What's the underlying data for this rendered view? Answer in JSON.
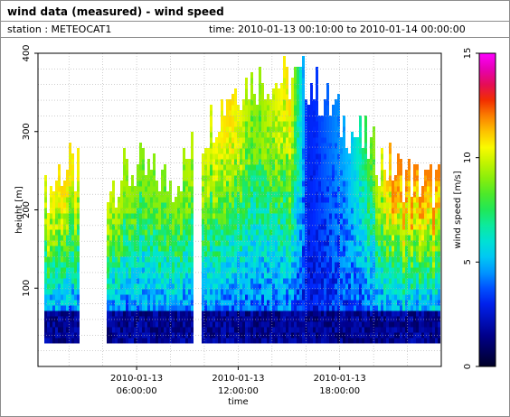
{
  "header": {
    "title": "wind data (measured) - wind speed",
    "station": "station : METEOCAT1",
    "timerange": "time: 2010-01-13 00:10:00 to 2010-01-14 00:00:00"
  },
  "chart_data": {
    "type": "heatmap",
    "xlabel": "time",
    "ylabel": "height [m]",
    "colorbar_label": "wind speed [m/s]",
    "colorscale": "jet-like (dark blue to magenta)",
    "xlim_hours": [
      0.17,
      24
    ],
    "ylim": [
      0,
      400
    ],
    "x_ticks": [
      {
        "hour": 6,
        "line1": "2010-01-13",
        "line2": "06:00:00"
      },
      {
        "hour": 12,
        "line1": "2010-01-13",
        "line2": "12:00:00"
      },
      {
        "hour": 18,
        "line1": "2010-01-13",
        "line2": "18:00:00"
      }
    ],
    "y_ticks": [
      100,
      200,
      300,
      400
    ],
    "colorbar_range": [
      0,
      15
    ],
    "colorbar_ticks": [
      0,
      5,
      10,
      15
    ],
    "grid": true,
    "data_gaps_hours": [
      [
        2.6,
        4.2
      ],
      [
        9.3,
        9.7
      ]
    ],
    "profiles": [
      {
        "start_hour": 0.17,
        "top_m": 200,
        "max_speed_m_s": 10
      },
      {
        "start_hour": 1.5,
        "top_m": 250,
        "max_speed_m_s": 11
      },
      {
        "start_hour": 4.2,
        "top_m": 230,
        "max_speed_m_s": 10
      },
      {
        "start_hour": 6.0,
        "top_m": 250,
        "max_speed_m_s": 9
      },
      {
        "start_hour": 8.0,
        "top_m": 230,
        "max_speed_m_s": 9
      },
      {
        "start_hour": 11.5,
        "top_m": 350,
        "max_speed_m_s": 11
      },
      {
        "start_hour": 13.0,
        "top_m": 365,
        "max_speed_m_s": 9
      },
      {
        "start_hour": 15.0,
        "top_m": 360,
        "max_speed_m_s": 11
      },
      {
        "start_hour": 16.0,
        "top_m": 365,
        "max_speed_m_s": 3
      },
      {
        "start_hour": 18.5,
        "top_m": 300,
        "max_speed_m_s": 5
      },
      {
        "start_hour": 21.0,
        "top_m": 250,
        "max_speed_m_s": 12
      },
      {
        "start_hour": 23.0,
        "top_m": 230,
        "max_speed_m_s": 12
      }
    ]
  }
}
